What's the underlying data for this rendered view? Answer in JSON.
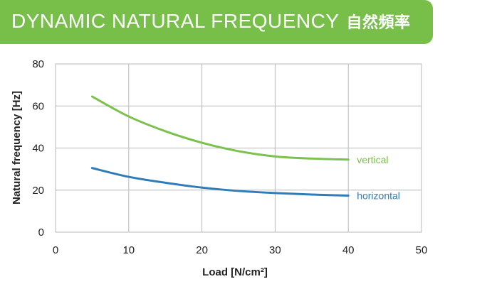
{
  "header": {
    "title": "DYNAMIC NATURAL FREQUENCY",
    "title_cn": "自然頻率"
  },
  "colors": {
    "banner": "#78bf4a",
    "vertical": "#7bc14c",
    "horizontal": "#2e7db8",
    "grid": "#b9b9b9"
  },
  "chart_data": {
    "type": "line",
    "title": "DYNAMIC NATURAL FREQUENCY",
    "xlabel": "Load [N/cm²]",
    "ylabel": "Natural frequency [Hz]",
    "xlim": [
      0,
      50
    ],
    "ylim": [
      0,
      80
    ],
    "xticks": [
      0,
      10,
      20,
      30,
      40,
      50
    ],
    "yticks": [
      0,
      20,
      40,
      60,
      80
    ],
    "xtick_labels": [
      "0",
      "10",
      "20",
      "30",
      "40",
      "50"
    ],
    "ytick_labels": [
      "0",
      "20",
      "40",
      "60",
      "80"
    ],
    "grid": true,
    "legend": "inline-right",
    "series": [
      {
        "name": "vertical",
        "color": "#7bc14c",
        "x": [
          5,
          10,
          15,
          20,
          25,
          30,
          35,
          40
        ],
        "y": [
          64.5,
          55,
          48,
          42.5,
          38.5,
          36,
          35,
          34.5
        ]
      },
      {
        "name": "horizontal",
        "color": "#2e7db8",
        "x": [
          5,
          10,
          15,
          20,
          25,
          30,
          35,
          40
        ],
        "y": [
          30.5,
          26.3,
          23.5,
          21.2,
          19.6,
          18.6,
          17.9,
          17.4
        ]
      }
    ]
  }
}
